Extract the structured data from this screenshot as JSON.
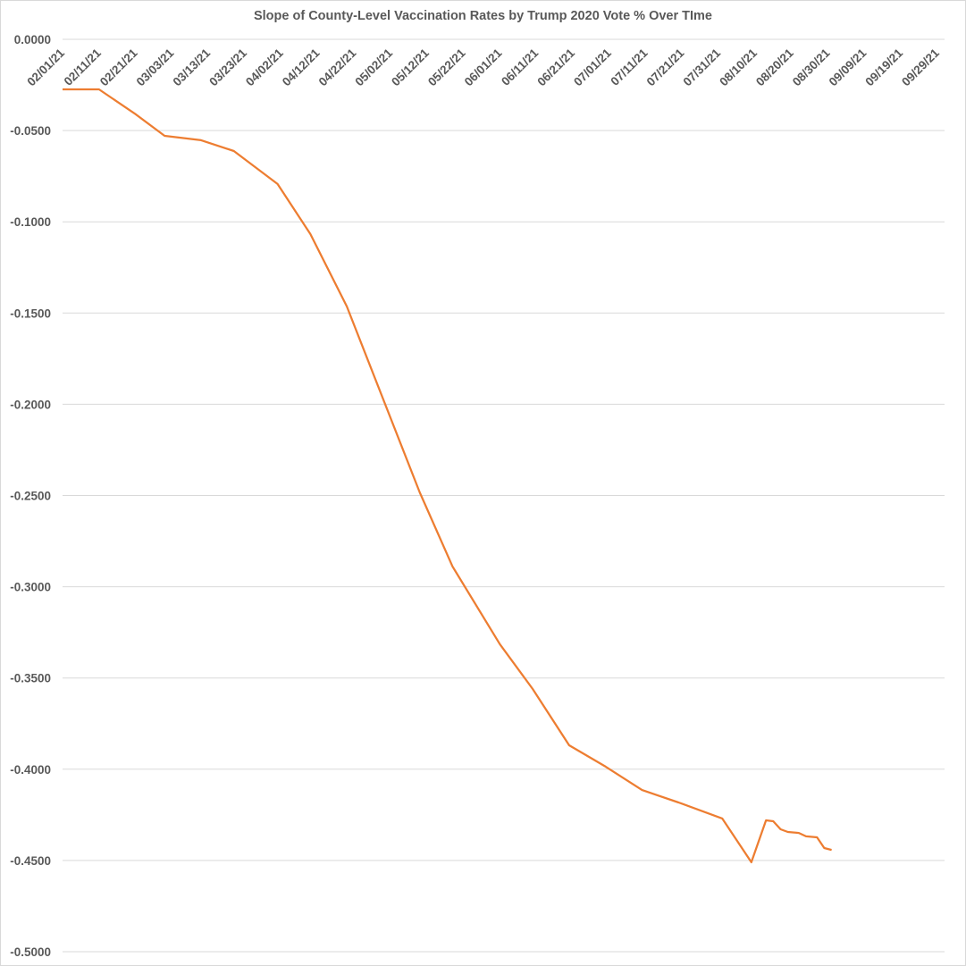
{
  "chart_data": {
    "type": "line",
    "title": "Slope of County-Level Vaccination Rates by Trump 2020 Vote % Over TIme",
    "xlabel": "",
    "ylabel": "",
    "ylim": [
      -0.5,
      0
    ],
    "xlim": [
      "02/01/21",
      "10/01/21"
    ],
    "grid": true,
    "legend": "none",
    "y_ticks": [
      "0.0000",
      "-0.0500",
      "-0.1000",
      "-0.1500",
      "-0.2000",
      "-0.2500",
      "-0.3000",
      "-0.3500",
      "-0.4000",
      "-0.4500",
      "-0.5000"
    ],
    "x_ticks": [
      "02/01/21",
      "02/11/21",
      "02/21/21",
      "03/03/21",
      "03/13/21",
      "03/23/21",
      "04/02/21",
      "04/12/21",
      "04/22/21",
      "05/02/21",
      "05/12/21",
      "05/22/21",
      "06/01/21",
      "06/11/21",
      "06/21/21",
      "07/01/21",
      "07/11/21",
      "07/21/21",
      "07/31/21",
      "08/10/21",
      "08/20/21",
      "08/30/21",
      "09/09/21",
      "09/19/21",
      "09/29/21"
    ],
    "line_color": "#ED7D31",
    "series": [
      {
        "x": [
          "02/01/21",
          "02/11/21",
          "02/21/21",
          "03/01/21",
          "03/11/21",
          "03/20/21",
          "04/01/21",
          "04/10/21",
          "04/20/21",
          "05/10/21",
          "05/19/21",
          "06/01/21",
          "06/10/21",
          "06/20/21",
          "06/30/21",
          "07/10/21",
          "07/20/21",
          "08/01/21",
          "08/09/21",
          "08/13/21",
          "08/15/21",
          "08/17/21",
          "08/19/21",
          "08/22/21",
          "08/24/21",
          "08/27/21",
          "08/29/21",
          "08/31/21"
        ],
        "y": [
          -0.0274,
          -0.0274,
          -0.041,
          -0.0529,
          -0.0553,
          -0.0612,
          -0.0793,
          -0.1067,
          -0.1464,
          -0.2483,
          -0.2889,
          -0.3315,
          -0.356,
          -0.3869,
          -0.3986,
          -0.4114,
          -0.4182,
          -0.427,
          -0.451,
          -0.428,
          -0.4285,
          -0.4329,
          -0.4344,
          -0.4349,
          -0.4368,
          -0.4373,
          -0.4432,
          -0.4442
        ]
      }
    ]
  }
}
